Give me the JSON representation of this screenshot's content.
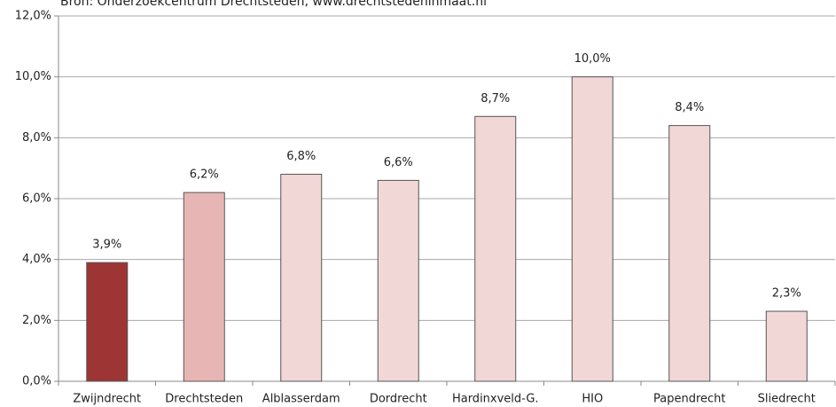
{
  "chart_data": {
    "type": "bar",
    "subtitle": "Bron: Onderzoekcentrum Drechtsteden, www.drechtstedeninmaat.nl",
    "categories": [
      "Zwijndrecht",
      "Drechtsteden",
      "Alblasserdam",
      "Dordrecht",
      "Hardinxveld-G.",
      "HIO",
      "Papendrecht",
      "Sliedrecht"
    ],
    "values": [
      3.9,
      6.2,
      6.8,
      6.6,
      8.7,
      10.0,
      8.4,
      2.3
    ],
    "value_labels": [
      "3,9%",
      "6,2%",
      "6,8%",
      "6,6%",
      "8,7%",
      "10,0%",
      "8,4%",
      "2,3%"
    ],
    "colors": [
      "#9e3535",
      "#e8b5b5",
      "#f2d7d7",
      "#f2d7d7",
      "#f2d7d7",
      "#f2d7d7",
      "#f2d7d7",
      "#f2d7d7"
    ],
    "ylim": [
      0,
      12
    ],
    "yticks": [
      {
        "value": 0,
        "label": "0,0%"
      },
      {
        "value": 2,
        "label": "2,0%"
      },
      {
        "value": 4,
        "label": "4,0%"
      },
      {
        "value": 6,
        "label": "6,0%"
      },
      {
        "value": 8,
        "label": "8,0%"
      },
      {
        "value": 10,
        "label": "10,0%"
      },
      {
        "value": 12,
        "label": "12,0%"
      }
    ],
    "grid": true
  }
}
